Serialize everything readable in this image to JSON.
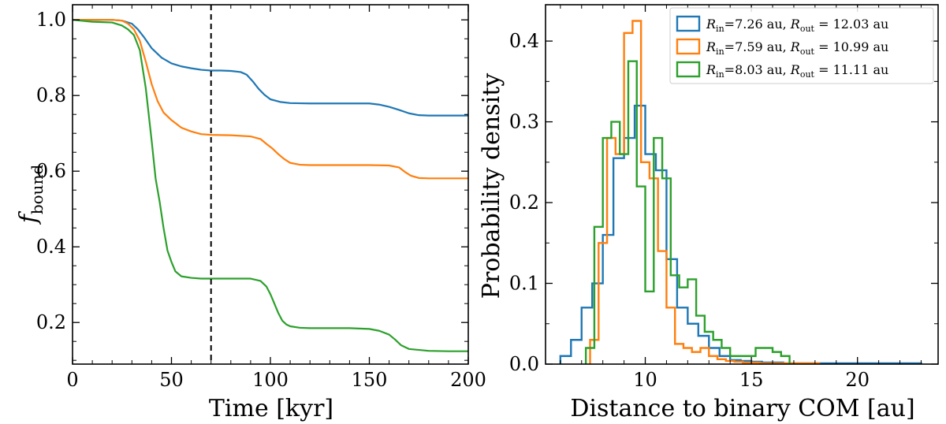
{
  "chart_data": [
    {
      "type": "line",
      "xlabel": "Time [kyr]",
      "ylabel": "f",
      "ylabel_sub": "bound",
      "xlim": [
        0,
        200
      ],
      "ylim": [
        0.09,
        1.04
      ],
      "xticks": [
        0,
        50,
        100,
        150,
        200
      ],
      "yticks": [
        0.2,
        0.4,
        0.6,
        0.8,
        1.0
      ],
      "ytick_labels": [
        "0.2",
        "0.4",
        "0.6",
        "0.8",
        "1.0"
      ],
      "vline_x": 70,
      "grid": false,
      "series": [
        {
          "color": "#1f77b4",
          "x": [
            0,
            10,
            20,
            25,
            30,
            33,
            36,
            40,
            45,
            50,
            55,
            60,
            65,
            70,
            75,
            80,
            85,
            88,
            91,
            94,
            97,
            100,
            105,
            110,
            120,
            130,
            140,
            150,
            155,
            160,
            165,
            170,
            175,
            180,
            190,
            200
          ],
          "y": [
            1.0,
            1.0,
            1.0,
            0.998,
            0.99,
            0.975,
            0.955,
            0.925,
            0.9,
            0.885,
            0.877,
            0.872,
            0.868,
            0.866,
            0.866,
            0.865,
            0.862,
            0.855,
            0.838,
            0.818,
            0.802,
            0.79,
            0.783,
            0.78,
            0.779,
            0.779,
            0.779,
            0.779,
            0.776,
            0.77,
            0.762,
            0.753,
            0.748,
            0.747,
            0.747,
            0.747
          ]
        },
        {
          "color": "#ff7f0e",
          "x": [
            0,
            10,
            20,
            25,
            28,
            31,
            34,
            37,
            40,
            43,
            46,
            50,
            55,
            60,
            65,
            70,
            80,
            90,
            95,
            98,
            101,
            104,
            107,
            110,
            115,
            120,
            130,
            140,
            150,
            160,
            165,
            168,
            171,
            175,
            180,
            190,
            200
          ],
          "y": [
            1.0,
            1.0,
            1.0,
            0.998,
            0.99,
            0.975,
            0.945,
            0.89,
            0.83,
            0.785,
            0.755,
            0.735,
            0.715,
            0.705,
            0.698,
            0.696,
            0.695,
            0.692,
            0.685,
            0.672,
            0.66,
            0.645,
            0.632,
            0.622,
            0.617,
            0.616,
            0.616,
            0.616,
            0.616,
            0.615,
            0.61,
            0.598,
            0.588,
            0.582,
            0.581,
            0.581,
            0.581
          ]
        },
        {
          "color": "#2ca02c",
          "x": [
            0,
            10,
            20,
            25,
            28,
            31,
            34,
            37,
            40,
            42,
            44,
            46,
            48,
            50,
            52,
            55,
            60,
            65,
            70,
            75,
            80,
            90,
            95,
            98,
            100,
            102,
            104,
            106,
            108,
            110,
            115,
            120,
            130,
            140,
            150,
            155,
            160,
            163,
            166,
            170,
            180,
            190,
            200
          ],
          "y": [
            1.0,
            0.995,
            0.993,
            0.985,
            0.975,
            0.96,
            0.92,
            0.82,
            0.68,
            0.58,
            0.52,
            0.45,
            0.39,
            0.36,
            0.335,
            0.322,
            0.318,
            0.316,
            0.316,
            0.316,
            0.316,
            0.316,
            0.31,
            0.295,
            0.275,
            0.25,
            0.225,
            0.205,
            0.195,
            0.19,
            0.186,
            0.185,
            0.185,
            0.185,
            0.183,
            0.178,
            0.168,
            0.155,
            0.14,
            0.13,
            0.125,
            0.124,
            0.124
          ]
        }
      ]
    },
    {
      "type": "histogram",
      "xlabel": "Distance to binary COM [au]",
      "ylabel": "Probability density",
      "xlim": [
        5.3,
        23.8
      ],
      "ylim": [
        0,
        0.445
      ],
      "xticks": [
        10,
        15,
        20
      ],
      "yticks": [
        0.0,
        0.1,
        0.2,
        0.3,
        0.4
      ],
      "ytick_labels": [
        "0.0",
        "0.1",
        "0.2",
        "0.3",
        "0.4"
      ],
      "grid": false,
      "legend_position": "top-right",
      "series": [
        {
          "color": "#1f77b4",
          "legend": {
            "r_in": "7.26",
            "r_out": "12.03"
          },
          "edges": [
            6.0,
            6.5,
            7.0,
            7.5,
            8.0,
            8.5,
            9.0,
            9.5,
            10.0,
            10.5,
            11.0,
            11.5,
            12.0,
            12.5,
            13.0,
            13.5,
            14.0,
            14.5,
            15.0,
            15.5,
            16.0,
            16.5,
            17.0,
            17.5,
            18.0,
            18.5,
            19.0,
            19.5,
            20.0,
            20.5,
            21.0,
            21.5,
            22.0,
            22.5,
            23.0
          ],
          "values": [
            0.01,
            0.03,
            0.07,
            0.1,
            0.16,
            0.255,
            0.28,
            0.32,
            0.26,
            0.24,
            0.13,
            0.07,
            0.05,
            0.035,
            0.02,
            0.01,
            0.005,
            0.004,
            0.003,
            0.002,
            0.002,
            0.001,
            0.001,
            0.001,
            0.001,
            0.001,
            0.001,
            0.001,
            0.001,
            0.001,
            0.001,
            0.001,
            0.001,
            0.001
          ]
        },
        {
          "color": "#ff7f0e",
          "legend": {
            "r_in": "7.59",
            "r_out": "10.99"
          },
          "edges": [
            7.4,
            7.8,
            8.2,
            8.6,
            9.0,
            9.4,
            9.8,
            10.2,
            10.6,
            11.0,
            11.4,
            11.8,
            12.2,
            12.6,
            13.0,
            13.4,
            13.8,
            14.2,
            14.6,
            15.0,
            15.4,
            15.8,
            16.2,
            16.6,
            17.0,
            17.4,
            17.8,
            18.2
          ],
          "values": [
            0.03,
            0.15,
            0.28,
            0.26,
            0.41,
            0.425,
            0.25,
            0.23,
            0.14,
            0.07,
            0.025,
            0.02,
            0.015,
            0.02,
            0.01,
            0.006,
            0.004,
            0.003,
            0.002,
            0.002,
            0.001,
            0.001,
            0.001,
            0.001,
            0.001,
            0.001,
            0.001
          ]
        },
        {
          "color": "#2ca02c",
          "legend": {
            "r_in": "8.03",
            "r_out": "11.11"
          },
          "edges": [
            7.2,
            7.6,
            8.0,
            8.4,
            8.8,
            9.2,
            9.6,
            10.0,
            10.4,
            10.8,
            11.2,
            11.6,
            12.0,
            12.4,
            12.8,
            13.2,
            13.6,
            14.0,
            14.4,
            14.8,
            15.2,
            15.6,
            16.0,
            16.4,
            16.8
          ],
          "values": [
            0.02,
            0.17,
            0.28,
            0.3,
            0.26,
            0.375,
            0.22,
            0.09,
            0.28,
            0.23,
            0.11,
            0.095,
            0.105,
            0.06,
            0.04,
            0.03,
            0.02,
            0.01,
            0.01,
            0.01,
            0.02,
            0.02,
            0.015,
            0.01
          ]
        }
      ]
    }
  ]
}
